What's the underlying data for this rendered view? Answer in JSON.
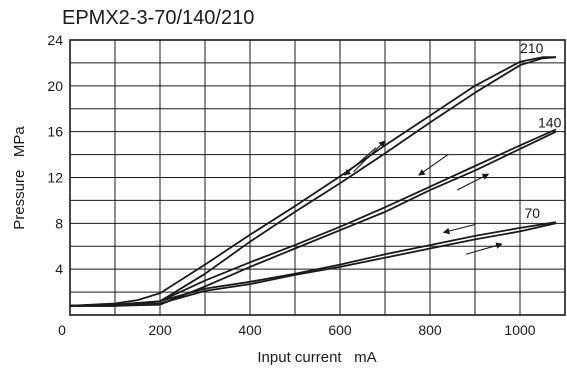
{
  "chart_data": {
    "type": "line",
    "title": "EPMX2-3-70/140/210",
    "xlabel": "Input current   mA",
    "ylabel": "Pressure   MPa",
    "xlim": [
      0,
      1100
    ],
    "ylim": [
      0,
      24
    ],
    "x_ticks": [
      0,
      200,
      400,
      600,
      800,
      1000
    ],
    "y_ticks": [
      4,
      8,
      12,
      16,
      20,
      24
    ],
    "x_grid": [
      100,
      200,
      300,
      400,
      500,
      600,
      700,
      800,
      900,
      1000,
      1100
    ],
    "y_grid": [
      2,
      4,
      6,
      8,
      10,
      12,
      14,
      16,
      18,
      20,
      22,
      24
    ],
    "grid": true,
    "series": [
      {
        "name": "210",
        "increasing": {
          "x": [
            0,
            100,
            200,
            300,
            400,
            500,
            600,
            700,
            800,
            900,
            1000,
            1050,
            1080
          ],
          "y": [
            0.8,
            0.8,
            1.2,
            3.6,
            6.4,
            9.0,
            11.5,
            14.1,
            16.8,
            19.4,
            21.8,
            22.4,
            22.5
          ]
        },
        "decreasing": {
          "x": [
            1080,
            1050,
            1000,
            900,
            800,
            700,
            600,
            500,
            400,
            300,
            200,
            150,
            100,
            0
          ],
          "y": [
            22.5,
            22.5,
            22.1,
            20.0,
            17.4,
            14.8,
            12.1,
            9.5,
            7.0,
            4.4,
            1.9,
            1.3,
            1.0,
            0.8
          ]
        }
      },
      {
        "name": "140",
        "increasing": {
          "x": [
            0,
            100,
            200,
            300,
            400,
            500,
            600,
            700,
            800,
            900,
            1000,
            1080
          ],
          "y": [
            0.8,
            0.8,
            0.9,
            2.5,
            4.2,
            5.8,
            7.4,
            9.0,
            10.9,
            12.6,
            14.5,
            16.0
          ]
        },
        "decreasing": {
          "x": [
            1080,
            1000,
            900,
            800,
            700,
            600,
            500,
            400,
            300,
            200,
            100,
            0
          ],
          "y": [
            16.2,
            14.8,
            13.0,
            11.2,
            9.4,
            7.7,
            6.1,
            4.6,
            3.0,
            1.2,
            0.9,
            0.8
          ]
        }
      },
      {
        "name": "70",
        "increasing": {
          "x": [
            0,
            100,
            200,
            300,
            400,
            500,
            600,
            700,
            800,
            900,
            1000,
            1080
          ],
          "y": [
            0.8,
            0.8,
            1.0,
            2.1,
            2.7,
            3.5,
            4.2,
            5.0,
            5.8,
            6.6,
            7.3,
            8.0
          ]
        },
        "decreasing": {
          "x": [
            1080,
            1000,
            900,
            800,
            700,
            600,
            500,
            400,
            300,
            200,
            100,
            0
          ],
          "y": [
            8.1,
            7.6,
            6.9,
            6.1,
            5.3,
            4.4,
            3.6,
            2.9,
            2.3,
            1.2,
            0.9,
            0.8
          ]
        }
      }
    ],
    "annotations": [
      {
        "text": "210",
        "x": 1000,
        "y": 22.5
      },
      {
        "text": "140",
        "x": 1040,
        "y": 16.0
      },
      {
        "text": "70",
        "x": 1010,
        "y": 8.1
      }
    ],
    "arrows": [
      {
        "x1": 680,
        "y1": 14.6,
        "x2": 610,
        "y2": 12.2
      },
      {
        "x1": 630,
        "y1": 12.5,
        "x2": 700,
        "y2": 15.2
      },
      {
        "x1": 840,
        "y1": 14.0,
        "x2": 775,
        "y2": 12.2
      },
      {
        "x1": 860,
        "y1": 10.9,
        "x2": 930,
        "y2": 12.3
      },
      {
        "x1": 900,
        "y1": 7.9,
        "x2": 830,
        "y2": 7.2
      },
      {
        "x1": 880,
        "y1": 5.3,
        "x2": 960,
        "y2": 6.2
      }
    ],
    "colors": {
      "line": "#1a1a1a",
      "grid": "#1a1a1a",
      "background": "#ffffff"
    }
  }
}
